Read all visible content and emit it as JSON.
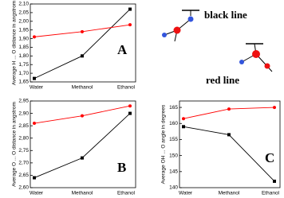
{
  "chart_data": [
    {
      "type": "line",
      "ylabel": "Average H ... O distance in angstrom",
      "annotation": "A",
      "categories": [
        "Water",
        "Methanol",
        "Ethanol"
      ],
      "ylim": [
        1.65,
        2.1
      ],
      "yticks": [
        {
          "value": 1.65,
          "label": "1,65"
        },
        {
          "value": 1.7,
          "label": "1,70"
        },
        {
          "value": 1.75,
          "label": "1,75"
        },
        {
          "value": 1.8,
          "label": "1,80"
        },
        {
          "value": 1.85,
          "label": "1,85"
        },
        {
          "value": 1.9,
          "label": "1,90"
        },
        {
          "value": 1.95,
          "label": "1,95"
        },
        {
          "value": 2.0,
          "label": "2,00"
        },
        {
          "value": 2.05,
          "label": "2,05"
        },
        {
          "value": 2.1,
          "label": "2,10"
        }
      ],
      "series": [
        {
          "name": "black line",
          "color": "#000000",
          "marker": "square",
          "values": [
            1.67,
            1.8,
            2.07
          ]
        },
        {
          "name": "red line",
          "color": "#ff0000",
          "marker": "circle",
          "values": [
            1.91,
            1.94,
            1.98
          ]
        }
      ]
    },
    {
      "type": "line",
      "ylabel": "Average O ... O distance in angstrom",
      "annotation": "B",
      "categories": [
        "Water",
        "Methanol",
        "Ethanol"
      ],
      "ylim": [
        2.6,
        2.95
      ],
      "yticks": [
        {
          "value": 2.6,
          "label": "2,60"
        },
        {
          "value": 2.65,
          "label": "2,65"
        },
        {
          "value": 2.7,
          "label": "2,70"
        },
        {
          "value": 2.75,
          "label": "2,75"
        },
        {
          "value": 2.8,
          "label": "2,80"
        },
        {
          "value": 2.85,
          "label": "2,85"
        },
        {
          "value": 2.9,
          "label": "2,90"
        },
        {
          "value": 2.95,
          "label": "2,95"
        }
      ],
      "series": [
        {
          "color": "#000000",
          "marker": "square",
          "values": [
            2.64,
            2.72,
            2.9
          ]
        },
        {
          "color": "#ff0000",
          "marker": "circle",
          "values": [
            2.86,
            2.89,
            2.93
          ]
        }
      ]
    },
    {
      "type": "line",
      "ylabel": "Average OH ... O angle in degrees",
      "annotation": "C",
      "categories": [
        "Water",
        "Methanol",
        "Ethanol"
      ],
      "ylim": [
        140,
        167
      ],
      "yticks": [
        140,
        145,
        150,
        155,
        160,
        165
      ],
      "series": [
        {
          "color": "#000000",
          "marker": "square",
          "values": [
            159,
            156.5,
            142
          ]
        },
        {
          "color": "#ff0000",
          "marker": "circle",
          "values": [
            161.5,
            164.5,
            165
          ]
        }
      ]
    }
  ]
}
